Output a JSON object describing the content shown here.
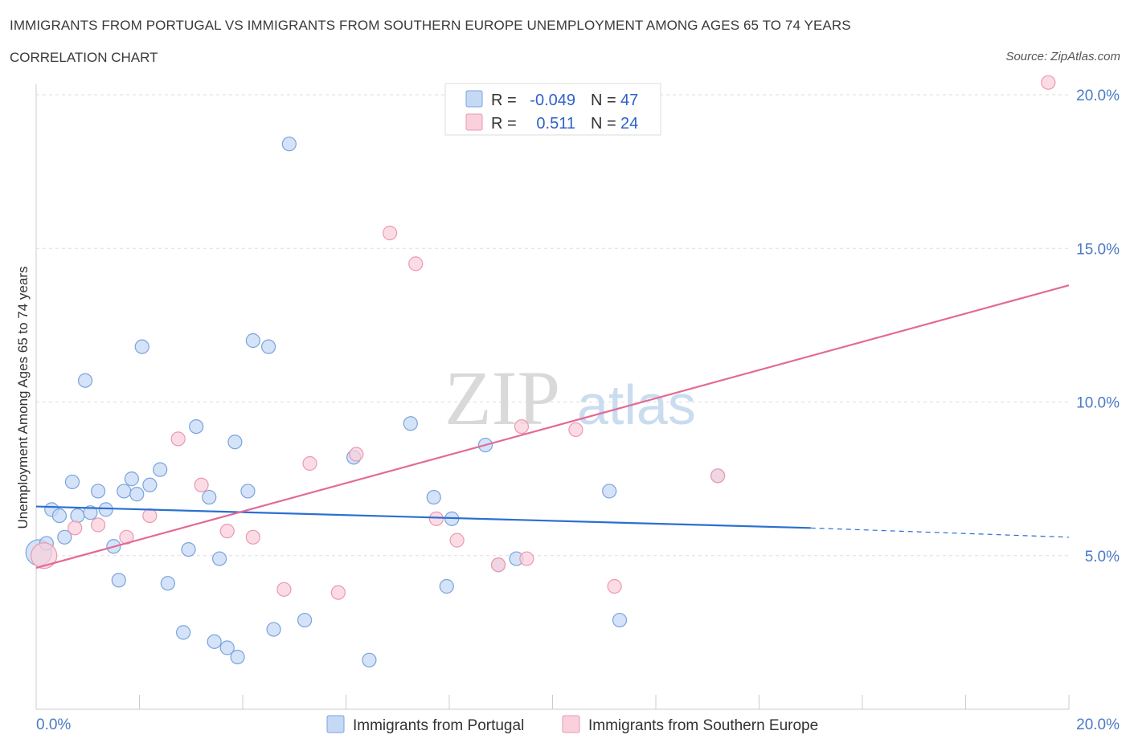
{
  "header": {
    "title": "IMMIGRANTS FROM PORTUGAL VS IMMIGRANTS FROM SOUTHERN EUROPE UNEMPLOYMENT AMONG AGES 65 TO 74 YEARS",
    "subtitle": "CORRELATION CHART",
    "source": "Source: ZipAtlas.com"
  },
  "watermark": {
    "zip": "ZIP",
    "atlas": "atlas"
  },
  "legend_box": {
    "rows": [
      {
        "r_label": "R =",
        "r_value": "-0.049",
        "n_label": "N =",
        "n_value": "47"
      },
      {
        "r_label": "R =",
        "r_value": "0.511",
        "n_label": "N =",
        "n_value": "24"
      }
    ]
  },
  "colors": {
    "portugal_fill": "#c5d9f5",
    "portugal_stroke": "#7aa3dc",
    "portugal_line": "#2b6fd1",
    "southern_fill": "#f9d0dc",
    "southern_stroke": "#eb98b2",
    "southern_line": "#e36a95",
    "grid": "#dddddd",
    "tick_text": "#4a7ac8"
  },
  "chart_data": {
    "type": "scatter",
    "title": "IMMIGRANTS FROM PORTUGAL VS IMMIGRANTS FROM SOUTHERN EUROPE UNEMPLOYMENT AMONG AGES 65 TO 74 YEARS",
    "subtitle": "CORRELATION CHART",
    "xlabel": "",
    "ylabel": "Unemployment Among Ages 65 to 74 years",
    "xlim": [
      0,
      20
    ],
    "ylim": [
      0,
      20.5
    ],
    "x_tick_labels": [
      "0.0%",
      "20.0%"
    ],
    "y_ticks": [
      5,
      10,
      15,
      20
    ],
    "y_tick_labels": [
      "5.0%",
      "10.0%",
      "15.0%",
      "20.0%"
    ],
    "grid": true,
    "series": [
      {
        "name": "Immigrants from Portugal",
        "r": -0.049,
        "n": 47,
        "trend": {
          "x0": 0,
          "y0": 6.6,
          "x1": 15,
          "y1": 5.9,
          "dashed_to_x": 20,
          "dashed_to_y": 5.6
        },
        "points": [
          [
            0.05,
            5.1
          ],
          [
            0.2,
            5.4
          ],
          [
            0.3,
            6.5
          ],
          [
            0.45,
            6.3
          ],
          [
            0.55,
            5.6
          ],
          [
            0.7,
            7.4
          ],
          [
            0.8,
            6.3
          ],
          [
            0.95,
            10.7
          ],
          [
            1.05,
            6.4
          ],
          [
            1.2,
            7.1
          ],
          [
            1.35,
            6.5
          ],
          [
            1.5,
            5.3
          ],
          [
            1.6,
            4.2
          ],
          [
            1.7,
            7.1
          ],
          [
            1.85,
            7.5
          ],
          [
            1.95,
            7.0
          ],
          [
            2.05,
            11.8
          ],
          [
            2.2,
            7.3
          ],
          [
            2.4,
            7.8
          ],
          [
            2.55,
            4.1
          ],
          [
            2.85,
            2.5
          ],
          [
            2.95,
            5.2
          ],
          [
            3.1,
            9.2
          ],
          [
            3.35,
            6.9
          ],
          [
            3.45,
            2.2
          ],
          [
            3.55,
            4.9
          ],
          [
            3.7,
            2.0
          ],
          [
            3.85,
            8.7
          ],
          [
            3.9,
            1.7
          ],
          [
            4.1,
            7.1
          ],
          [
            4.2,
            12.0
          ],
          [
            4.5,
            11.8
          ],
          [
            4.6,
            2.6
          ],
          [
            4.9,
            18.4
          ],
          [
            5.2,
            2.9
          ],
          [
            6.15,
            8.2
          ],
          [
            6.45,
            1.6
          ],
          [
            7.25,
            9.3
          ],
          [
            7.7,
            6.9
          ],
          [
            7.95,
            4.0
          ],
          [
            8.05,
            6.2
          ],
          [
            8.7,
            8.6
          ],
          [
            8.95,
            4.7
          ],
          [
            9.3,
            4.9
          ],
          [
            11.1,
            7.1
          ],
          [
            11.3,
            2.9
          ],
          [
            13.2,
            7.6
          ]
        ]
      },
      {
        "name": "Immigrants from Southern Europe",
        "r": 0.511,
        "n": 24,
        "trend": {
          "x0": 0,
          "y0": 4.6,
          "x1": 20,
          "y1": 13.8
        },
        "points": [
          [
            0.15,
            5.0
          ],
          [
            0.75,
            5.9
          ],
          [
            1.2,
            6.0
          ],
          [
            1.75,
            5.6
          ],
          [
            2.2,
            6.3
          ],
          [
            2.75,
            8.8
          ],
          [
            3.2,
            7.3
          ],
          [
            3.7,
            5.8
          ],
          [
            4.2,
            5.6
          ],
          [
            4.8,
            3.9
          ],
          [
            5.3,
            8.0
          ],
          [
            5.85,
            3.8
          ],
          [
            6.2,
            8.3
          ],
          [
            6.85,
            15.5
          ],
          [
            7.35,
            14.5
          ],
          [
            7.75,
            6.2
          ],
          [
            8.15,
            5.5
          ],
          [
            8.95,
            4.7
          ],
          [
            9.4,
            9.2
          ],
          [
            9.5,
            4.9
          ],
          [
            10.45,
            9.1
          ],
          [
            11.2,
            4.0
          ],
          [
            13.2,
            7.6
          ],
          [
            19.6,
            20.4
          ]
        ]
      }
    ]
  },
  "bottom_legend": {
    "items": [
      {
        "label": "Immigrants from Portugal"
      },
      {
        "label": "Immigrants from Southern Europe"
      }
    ]
  }
}
